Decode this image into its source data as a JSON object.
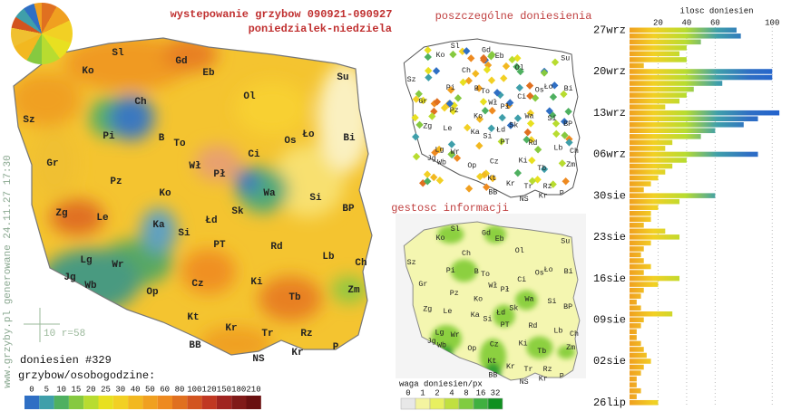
{
  "header": {
    "title": "wystepowanie grzybow 090921-090927",
    "subtitle": "poniedzialek-niedziela"
  },
  "watermark": "www.grzyby.pl generowane 24.11.27 17:30",
  "map": {
    "labels": [
      "Sl",
      "Gd",
      "Ko",
      "Eb",
      "Su",
      "Ol",
      "Sz",
      "Ch",
      "Pi",
      "B",
      "To",
      "Os",
      "Ło",
      "Bi",
      "Gr",
      "Wł",
      "Pł",
      "Ci",
      "Pz",
      "Ko",
      "Wa",
      "Si",
      "Zg",
      "Le",
      "Ka",
      "Łd",
      "Sk",
      "BP",
      "Si",
      "PT",
      "Rd",
      "Lb",
      "Lg",
      "Wr",
      "Ch",
      "Jg",
      "Wb",
      "Op",
      "Cz",
      "Ki",
      "Tb",
      "Zm",
      "Kt",
      "Kr",
      "Tr",
      "Rz",
      "BB",
      "NS",
      "Kr",
      "P"
    ],
    "scale_label": "10 r=58",
    "report_count": "doniesien #329"
  },
  "legend": {
    "title": "grzybow/osobogodzine:",
    "ticks": [
      0,
      5,
      10,
      15,
      20,
      25,
      30,
      40,
      50,
      60,
      80,
      100,
      120,
      150,
      180,
      210
    ],
    "colors": [
      "#2f6fc4",
      "#3f9faa",
      "#4fb060",
      "#86c940",
      "#b8dc30",
      "#e8e020",
      "#f2d024",
      "#f2b820",
      "#f0a020",
      "#ee8a20",
      "#e07020",
      "#d25420",
      "#c03822",
      "#a02420",
      "#801a18",
      "#6a1010"
    ]
  },
  "reports_map": {
    "title": "poszczególne doniesienia"
  },
  "density_map": {
    "title": "gestosc informacji",
    "legend_title": "waga doniesien/px",
    "ticks": [
      0,
      1,
      2,
      4,
      8,
      16,
      32
    ],
    "colors": [
      "#e8e8e8",
      "#f4f4a0",
      "#e8f060",
      "#c0e040",
      "#80cc40",
      "#40b040",
      "#109020"
    ]
  },
  "chart_data": {
    "type": "bar",
    "title": "ilosc doniesien",
    "categories": [
      "27wrz",
      null,
      null,
      null,
      null,
      null,
      null,
      "20wrz",
      null,
      null,
      null,
      null,
      null,
      null,
      "13wrz",
      null,
      null,
      null,
      null,
      null,
      null,
      "06wrz",
      null,
      null,
      null,
      null,
      null,
      null,
      "30sie",
      null,
      null,
      null,
      null,
      null,
      null,
      "23sie",
      null,
      null,
      null,
      null,
      null,
      null,
      "16sie",
      null,
      null,
      null,
      null,
      null,
      null,
      "09sie",
      null,
      null,
      null,
      null,
      null,
      null,
      "02sie",
      null,
      null,
      null,
      null,
      null,
      null,
      "26lip"
    ],
    "values": [
      75,
      78,
      50,
      40,
      35,
      40,
      10,
      100,
      100,
      65,
      45,
      40,
      35,
      25,
      105,
      90,
      80,
      60,
      50,
      30,
      25,
      90,
      40,
      30,
      25,
      20,
      15,
      10,
      60,
      35,
      20,
      15,
      15,
      10,
      25,
      35,
      15,
      10,
      8,
      10,
      15,
      10,
      35,
      20,
      10,
      8,
      5,
      8,
      30,
      10,
      8,
      5,
      5,
      8,
      10,
      12,
      15,
      10,
      8,
      5,
      5,
      8,
      5,
      20
    ],
    "xlim": [
      0,
      110
    ],
    "xticks": [
      20,
      40,
      60,
      100
    ]
  }
}
